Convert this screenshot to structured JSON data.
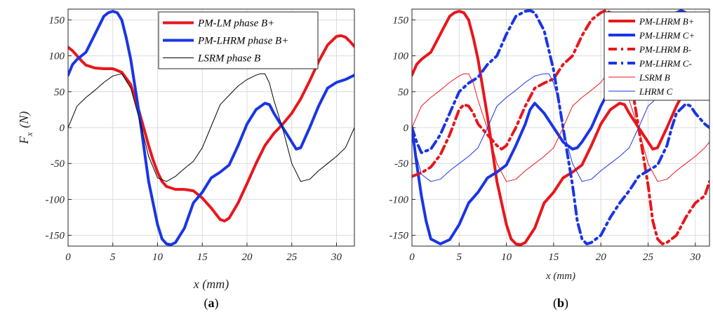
{
  "chart_data": [
    {
      "panel_label": "(a)",
      "type": "line",
      "xlabel": "x (mm)",
      "ylabel": "F_x (N)",
      "ylabel_main": "F",
      "ylabel_sub": "x",
      "ylabel_unit": "(N)",
      "xlim": [
        0,
        32
      ],
      "ylim": [
        -165,
        165
      ],
      "xticks": [
        0,
        5,
        10,
        15,
        20,
        25,
        30
      ],
      "yticks": [
        -150,
        -100,
        -50,
        0,
        50,
        100,
        150
      ],
      "grid": true,
      "legend_position": "top-right",
      "series": [
        {
          "name": "PM-LM phase B+",
          "color": "#e8161c",
          "width": 4,
          "dash": "",
          "x": [
            0,
            0.5,
            1,
            1.5,
            2,
            3,
            4,
            5,
            6,
            7,
            8,
            9,
            9.5,
            10,
            10.5,
            11,
            12,
            13,
            14,
            15,
            16,
            17,
            17.5,
            18,
            19,
            20,
            21,
            22,
            23,
            24,
            25,
            26,
            27,
            28,
            29,
            30,
            30.5,
            31,
            31.5,
            32
          ],
          "y": [
            112,
            107,
            100,
            93,
            87,
            83,
            82,
            82,
            77,
            60,
            20,
            -25,
            -45,
            -62,
            -75,
            -82,
            -86,
            -86,
            -88,
            -98,
            -112,
            -128,
            -130,
            -126,
            -105,
            -78,
            -50,
            -25,
            -8,
            5,
            20,
            40,
            65,
            92,
            115,
            127,
            128,
            126,
            120,
            113
          ]
        },
        {
          "name": "PM-LHRM phase B+",
          "color": "#1a35e6",
          "width": 4,
          "dash": "",
          "x": [
            0,
            0.5,
            1,
            2,
            3,
            4,
            4.5,
            5,
            5.5,
            6,
            6.5,
            7,
            8,
            9,
            10,
            10.5,
            11,
            11.5,
            12,
            13,
            14,
            15,
            16,
            17,
            18,
            19,
            20,
            21,
            22,
            22.5,
            23,
            24,
            25,
            25.5,
            26,
            27,
            28,
            29,
            30,
            31,
            32
          ],
          "y": [
            73,
            88,
            95,
            105,
            130,
            155,
            160,
            162,
            160,
            150,
            125,
            95,
            15,
            -75,
            -135,
            -155,
            -162,
            -163,
            -160,
            -140,
            -105,
            -90,
            -70,
            -62,
            -52,
            -25,
            5,
            25,
            34,
            32,
            20,
            0,
            -20,
            -30,
            -28,
            0,
            30,
            55,
            63,
            67,
            73
          ]
        },
        {
          "name": "LSRM phase B",
          "color": "#000000",
          "width": 1,
          "dash": "",
          "x": [
            0,
            1,
            2,
            3,
            4,
            5,
            6,
            7,
            8,
            9,
            10,
            11,
            12,
            13,
            14,
            15,
            16,
            17,
            18,
            19,
            20,
            21,
            21.5,
            22,
            22.5,
            23,
            24,
            25,
            26,
            27,
            28,
            29,
            30,
            31,
            32
          ],
          "y": [
            0,
            30,
            42,
            52,
            63,
            72,
            75,
            55,
            10,
            -40,
            -70,
            -75,
            -68,
            -57,
            -47,
            -28,
            2,
            32,
            45,
            58,
            67,
            73,
            75,
            75,
            62,
            38,
            -2,
            -50,
            -75,
            -72,
            -60,
            -50,
            -40,
            -28,
            0
          ]
        }
      ]
    },
    {
      "panel_label": "(b)",
      "type": "line",
      "xlabel": "x (mm)",
      "xlim": [
        0,
        31.5
      ],
      "ylim": [
        -165,
        165
      ],
      "xticks": [
        0,
        5,
        10,
        15,
        20,
        25,
        30
      ],
      "yticks": [
        -150,
        -100,
        -50,
        0,
        50,
        100,
        150
      ],
      "grid": true,
      "legend_position": "top-right",
      "series": [
        {
          "name": "PM-LHRM B+",
          "color": "#e8161c",
          "width": 4,
          "dash": "",
          "x": [
            0,
            0.5,
            1,
            2,
            3,
            4,
            4.5,
            5,
            5.5,
            6,
            6.5,
            7,
            8,
            9,
            10,
            10.5,
            11,
            11.5,
            12,
            13,
            14,
            15,
            16,
            17,
            18,
            19,
            20,
            21,
            22,
            22.5,
            23,
            24,
            25,
            25.5,
            26,
            27,
            28,
            29,
            30,
            31,
            31.5
          ],
          "y": [
            73,
            88,
            95,
            105,
            130,
            155,
            160,
            162,
            160,
            150,
            125,
            95,
            15,
            -75,
            -135,
            -155,
            -162,
            -163,
            -160,
            -140,
            -105,
            -90,
            -70,
            -62,
            -52,
            -25,
            5,
            25,
            34,
            32,
            20,
            0,
            -20,
            -30,
            -28,
            0,
            30,
            55,
            63,
            67,
            70
          ]
        },
        {
          "name": "PM-LHRM C+",
          "color": "#1a35e6",
          "width": 4,
          "dash": "",
          "x": [
            0,
            0.5,
            1,
            1.5,
            2,
            3,
            4,
            5,
            6,
            7,
            8,
            9,
            10,
            11,
            12,
            12.5,
            13,
            14,
            15,
            16,
            17,
            17.5,
            18,
            19,
            20,
            21,
            22,
            23,
            24,
            25,
            26,
            27,
            28,
            28.5,
            29,
            29.5,
            30,
            31,
            31.5
          ],
          "y": [
            0,
            -50,
            -95,
            -130,
            -155,
            -162,
            -156,
            -135,
            -105,
            -90,
            -70,
            -62,
            -52,
            -25,
            5,
            25,
            34,
            20,
            0,
            -20,
            -30,
            -28,
            -20,
            0,
            30,
            55,
            68,
            73,
            88,
            100,
            128,
            150,
            160,
            163,
            160,
            155,
            135,
            80,
            40
          ]
        },
        {
          "name": "PM-LHRM B-",
          "color": "#e8161c",
          "width": 4,
          "dash": "12,6,3,6",
          "x": [
            0,
            1,
            2,
            3,
            4,
            5,
            5.5,
            6,
            6.5,
            7,
            8,
            9,
            9.5,
            10,
            11,
            12,
            13,
            14,
            15,
            16,
            17,
            18,
            19,
            20,
            20.5,
            21,
            22,
            23,
            24,
            25,
            25.5,
            26,
            26.5,
            27,
            28,
            29,
            30,
            31,
            31.5
          ],
          "y": [
            -68,
            -63,
            -55,
            -38,
            -10,
            25,
            32,
            30,
            20,
            5,
            -10,
            -25,
            -30,
            -25,
            0,
            30,
            55,
            62,
            68,
            88,
            100,
            128,
            150,
            160,
            163,
            160,
            135,
            80,
            0,
            -80,
            -130,
            -155,
            -162,
            -160,
            -150,
            -125,
            -105,
            -95,
            -75
          ]
        },
        {
          "name": "PM-LHRM C-",
          "color": "#1a35e6",
          "width": 4,
          "dash": "12,6,3,6",
          "x": [
            0,
            0.5,
            1,
            2,
            3,
            4,
            5,
            6,
            7,
            8,
            9,
            10,
            11,
            12,
            12.5,
            13,
            14,
            15,
            16,
            17,
            17.5,
            18,
            18.5,
            19,
            20,
            21,
            22,
            23,
            24,
            25,
            26,
            27,
            27.5,
            28,
            29,
            29.5,
            30,
            31,
            31.5
          ],
          "y": [
            0,
            -20,
            -35,
            -30,
            -10,
            20,
            50,
            62,
            70,
            88,
            100,
            130,
            155,
            162,
            163,
            160,
            135,
            80,
            0,
            -80,
            -130,
            -155,
            -162,
            -160,
            -150,
            -125,
            -105,
            -88,
            -68,
            -60,
            -52,
            -25,
            0,
            20,
            33,
            30,
            20,
            5,
            0
          ]
        },
        {
          "name": "LSRM B",
          "color": "#e8161c",
          "width": 1,
          "dash": "",
          "x": [
            0,
            1,
            2,
            3,
            4,
            5,
            5.5,
            6,
            6.5,
            7,
            8,
            9,
            10,
            11,
            12,
            13,
            14,
            15,
            16,
            17,
            18,
            19,
            20,
            20.5,
            21,
            21.5,
            22,
            23,
            24,
            25,
            26,
            27,
            28,
            29,
            30,
            31,
            31.5
          ],
          "y": [
            0,
            30,
            42,
            52,
            63,
            72,
            75,
            75,
            62,
            38,
            -2,
            -50,
            -75,
            -72,
            -60,
            -50,
            -40,
            -28,
            0,
            30,
            42,
            52,
            63,
            72,
            75,
            75,
            62,
            38,
            -2,
            -50,
            -75,
            -72,
            -60,
            -50,
            -40,
            -28,
            -20
          ]
        },
        {
          "name": "LHRM C",
          "color": "#1a35e6",
          "width": 1,
          "dash": "",
          "x": [
            0,
            0.5,
            1,
            2,
            3,
            4,
            5,
            6,
            7,
            8,
            9,
            10,
            11,
            12,
            13,
            14,
            14.5,
            15,
            15.5,
            16,
            17,
            18,
            19,
            20,
            21,
            22,
            23,
            24,
            25,
            26,
            26.5,
            27,
            28,
            29,
            30,
            31,
            31.5
          ],
          "y": [
            0,
            -40,
            -65,
            -75,
            -72,
            -60,
            -50,
            -40,
            -28,
            0,
            30,
            42,
            52,
            63,
            72,
            75,
            75,
            62,
            38,
            -2,
            -50,
            -75,
            -72,
            -60,
            -50,
            -40,
            -28,
            0,
            30,
            42,
            52,
            63,
            72,
            75,
            75,
            62,
            40
          ]
        }
      ]
    }
  ]
}
